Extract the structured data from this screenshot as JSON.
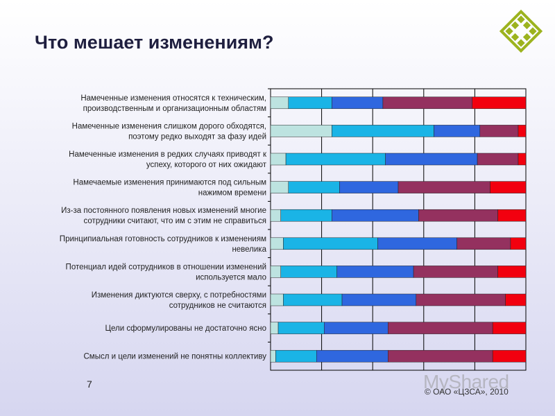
{
  "slide": {
    "title": "Что мешает изменениям?",
    "number": "7",
    "watermark": "MyShared",
    "copyright": "© ОАО «ЦЗСА», 2010"
  },
  "colors": {
    "series": [
      "#bde3e0",
      "#1ab4e6",
      "#2f67df",
      "#94315f",
      "#f2000f"
    ],
    "logo": "#9cb31e",
    "grid": "#000000"
  },
  "chart_data": {
    "type": "bar",
    "orientation": "horizontal",
    "stacked": "100%",
    "xlim": [
      0,
      100
    ],
    "grid": true,
    "legend": "none",
    "categories": [
      [
        "Намеченные изменения относятся к техническим,",
        "производственным и организационным областям"
      ],
      [
        "Намеченные изменения слишком дорого обходятся,",
        "поэтому редко выходят за фазу идей"
      ],
      [
        "Намеченные изменения в редких случаях приводят к",
        "успеху, которого от них ожидают"
      ],
      [
        "Намечаемые изменения принимаются под сильным",
        "нажимом времени"
      ],
      [
        "Из-за постоянного появления новых изменений многие",
        "сотрудники считают, что им с этим не справиться"
      ],
      [
        "Принципиальная готовность сотрудников к изменениям",
        "невелика"
      ],
      [
        "Потенциал идей сотрудников в отношении изменений",
        "используется мало"
      ],
      [
        "Изменения диктуются сверху, с потребностями",
        "сотрудников не считаются"
      ],
      [
        "Цели сформулированы не достаточно ясно"
      ],
      [
        "Смысл и цели изменений не понятны коллективу"
      ]
    ],
    "series": [
      {
        "values": [
          7,
          24,
          6,
          7,
          4,
          5,
          4,
          5,
          3,
          2
        ]
      },
      {
        "values": [
          17,
          40,
          39,
          20,
          20,
          37,
          22,
          23,
          18,
          16
        ]
      },
      {
        "values": [
          20,
          18,
          36,
          23,
          34,
          31,
          30,
          29,
          25,
          28
        ]
      },
      {
        "values": [
          35,
          15,
          16,
          36,
          31,
          21,
          33,
          35,
          41,
          41
        ]
      },
      {
        "values": [
          21,
          3,
          3,
          14,
          11,
          6,
          11,
          8,
          13,
          13
        ]
      }
    ]
  }
}
